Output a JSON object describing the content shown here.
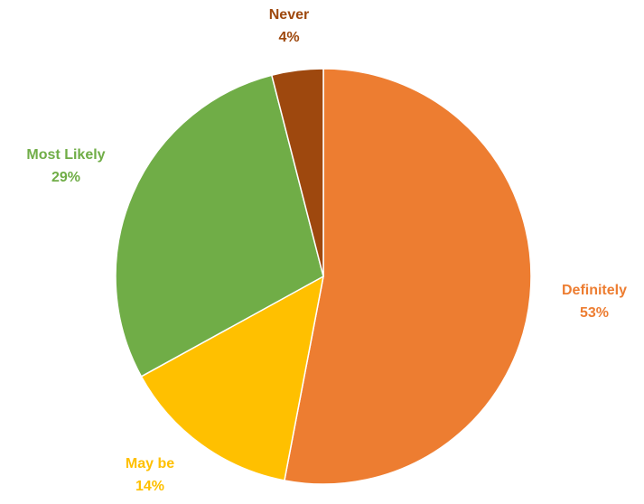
{
  "chart_data": {
    "type": "pie",
    "title": "",
    "start_angle_deg": 0,
    "direction": "clockwise",
    "slices": [
      {
        "label": "Definitely",
        "value": 53,
        "value_label": "53%",
        "color": "#ED7D31"
      },
      {
        "label": "May be",
        "value": 14,
        "value_label": "14%",
        "color": "#FFC000"
      },
      {
        "label": "Most Likely",
        "value": 29,
        "value_label": "29%",
        "color": "#70AD47"
      },
      {
        "label": "Never",
        "value": 4,
        "value_label": "4%",
        "color": "#9E480E"
      }
    ],
    "legend": "none",
    "data_labels": "outside"
  }
}
